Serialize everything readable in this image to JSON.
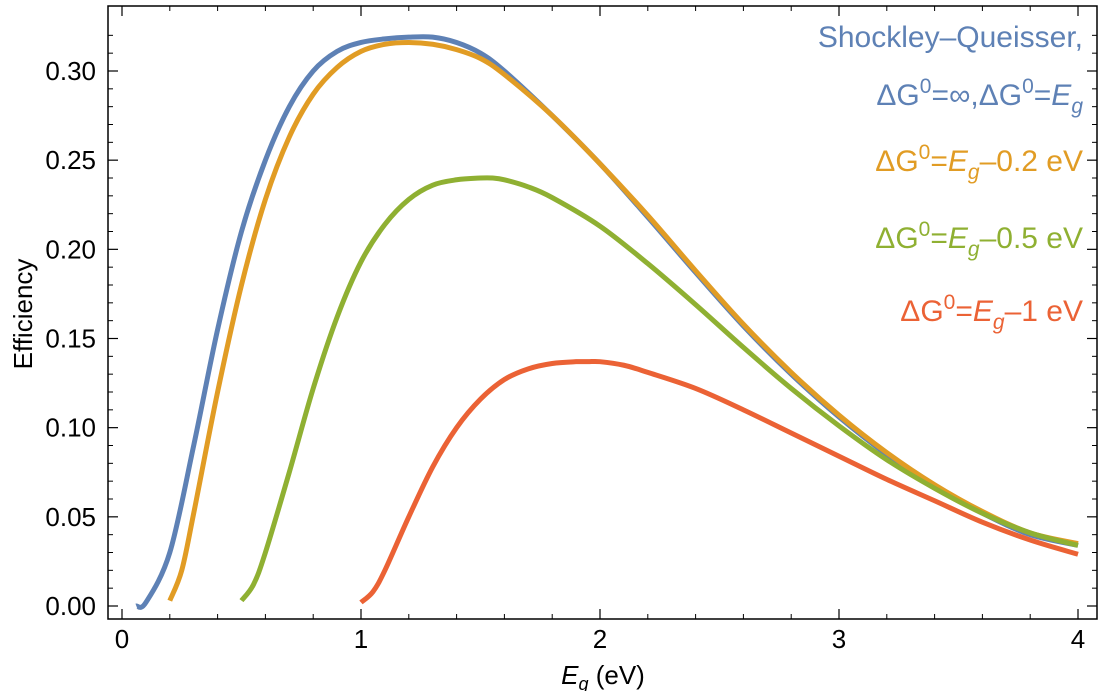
{
  "chart_data": {
    "type": "line",
    "xlabel_main": "E",
    "xlabel_sub": "g",
    "xlabel_unit": " (eV)",
    "ylabel": "Efficiency",
    "xlim": [
      0,
      4
    ],
    "ylim": [
      0,
      0.33
    ],
    "x_ticks": [
      0,
      1,
      2,
      3,
      4
    ],
    "y_ticks": [
      0.0,
      0.05,
      0.1,
      0.15,
      0.2,
      0.25,
      0.3
    ],
    "x_tick_labels": [
      "0",
      "1",
      "2",
      "3",
      "4"
    ],
    "y_tick_labels": [
      "0.00",
      "0.05",
      "0.10",
      "0.15",
      "0.20",
      "0.25",
      "0.30"
    ],
    "grid": false,
    "legend_position": "top-right",
    "series": [
      {
        "name": "Shockley–Queisser, ΔG⁰=∞,ΔG⁰=Eg",
        "color": "#5e81b5",
        "x": [
          0.06,
          0.1,
          0.2,
          0.3,
          0.4,
          0.5,
          0.6,
          0.7,
          0.8,
          0.9,
          1.0,
          1.1,
          1.2,
          1.3,
          1.4,
          1.5,
          1.6,
          1.8,
          2.0,
          2.2,
          2.4,
          2.6,
          2.8,
          3.0,
          3.2,
          3.4,
          3.6,
          3.8,
          4.0
        ],
        "y": [
          0.0,
          0.002,
          0.03,
          0.09,
          0.155,
          0.21,
          0.25,
          0.28,
          0.3,
          0.311,
          0.316,
          0.318,
          0.319,
          0.319,
          0.316,
          0.31,
          0.3,
          0.275,
          0.248,
          0.218,
          0.187,
          0.157,
          0.13,
          0.106,
          0.085,
          0.067,
          0.052,
          0.04,
          0.034
        ]
      },
      {
        "name": "ΔG⁰=Eg−0.2 eV",
        "color": "#e19c24",
        "x": [
          0.2,
          0.25,
          0.3,
          0.4,
          0.5,
          0.6,
          0.7,
          0.8,
          0.9,
          1.0,
          1.1,
          1.2,
          1.3,
          1.4,
          1.5,
          1.6,
          1.8,
          2.0,
          2.2,
          2.4,
          2.6,
          2.8,
          3.0,
          3.2,
          3.4,
          3.6,
          3.8,
          4.0
        ],
        "y": [
          0.003,
          0.02,
          0.052,
          0.12,
          0.18,
          0.228,
          0.263,
          0.287,
          0.302,
          0.311,
          0.315,
          0.316,
          0.315,
          0.312,
          0.307,
          0.298,
          0.275,
          0.248,
          0.219,
          0.188,
          0.158,
          0.131,
          0.107,
          0.086,
          0.068,
          0.053,
          0.041,
          0.035
        ]
      },
      {
        "name": "ΔG⁰=Eg−0.5 eV",
        "color": "#8fb032",
        "x": [
          0.5,
          0.55,
          0.6,
          0.7,
          0.8,
          0.9,
          1.0,
          1.1,
          1.2,
          1.3,
          1.4,
          1.5,
          1.55,
          1.6,
          1.7,
          1.8,
          2.0,
          2.2,
          2.4,
          2.6,
          2.8,
          3.0,
          3.2,
          3.4,
          3.6,
          3.8,
          4.0
        ],
        "y": [
          0.003,
          0.012,
          0.03,
          0.075,
          0.122,
          0.162,
          0.193,
          0.214,
          0.228,
          0.236,
          0.239,
          0.24,
          0.24,
          0.239,
          0.235,
          0.229,
          0.213,
          0.192,
          0.169,
          0.145,
          0.122,
          0.101,
          0.082,
          0.066,
          0.052,
          0.041,
          0.034
        ]
      },
      {
        "name": "ΔG⁰=Eg−1 eV",
        "color": "#eb6235",
        "x": [
          1.0,
          1.05,
          1.1,
          1.2,
          1.3,
          1.4,
          1.5,
          1.6,
          1.7,
          1.8,
          1.9,
          1.95,
          2.0,
          2.1,
          2.2,
          2.4,
          2.6,
          2.8,
          3.0,
          3.2,
          3.4,
          3.6,
          3.8,
          4.0
        ],
        "y": [
          0.002,
          0.008,
          0.02,
          0.05,
          0.078,
          0.1,
          0.116,
          0.127,
          0.133,
          0.136,
          0.137,
          0.137,
          0.137,
          0.135,
          0.131,
          0.122,
          0.11,
          0.097,
          0.084,
          0.071,
          0.059,
          0.047,
          0.037,
          0.029
        ]
      }
    ],
    "legend": [
      {
        "parts": [
          {
            "t": "Shockley–Queisser,"
          }
        ],
        "color": "#5e81b5"
      },
      {
        "parts": [
          {
            "t": "ΔG"
          },
          {
            "t": "0",
            "sup": true
          },
          {
            "t": "=∞,ΔG"
          },
          {
            "t": "0",
            "sup": true
          },
          {
            "t": "="
          },
          {
            "t": "E",
            "italic": true
          },
          {
            "t": "g",
            "italic": true,
            "sub": true
          }
        ],
        "color": "#5e81b5"
      },
      {
        "parts": [
          {
            "t": "ΔG"
          },
          {
            "t": "0",
            "sup": true
          },
          {
            "t": "="
          },
          {
            "t": "E",
            "italic": true
          },
          {
            "t": "g",
            "italic": true,
            "sub": true
          },
          {
            "t": "–0.2 eV"
          }
        ],
        "color": "#e19c24"
      },
      {
        "parts": [
          {
            "t": "ΔG"
          },
          {
            "t": "0",
            "sup": true
          },
          {
            "t": "="
          },
          {
            "t": "E",
            "italic": true
          },
          {
            "t": "g",
            "italic": true,
            "sub": true
          },
          {
            "t": "–0.5 eV"
          }
        ],
        "color": "#8fb032"
      },
      {
        "parts": [
          {
            "t": "ΔG"
          },
          {
            "t": "0",
            "sup": true
          },
          {
            "t": "="
          },
          {
            "t": "E",
            "italic": true
          },
          {
            "t": "g",
            "italic": true,
            "sub": true
          },
          {
            "t": "–1 eV"
          }
        ],
        "color": "#eb6235"
      }
    ]
  }
}
